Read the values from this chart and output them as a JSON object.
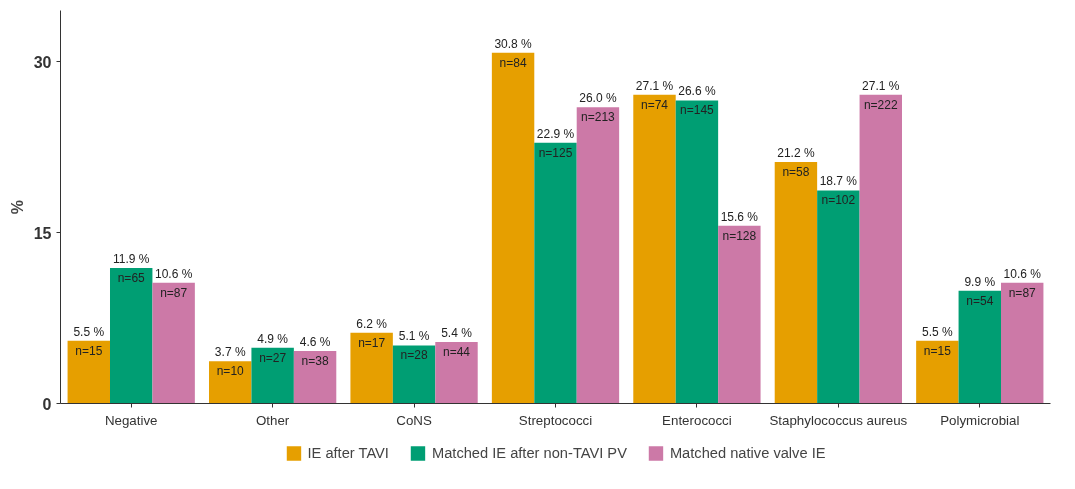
{
  "chart_data": {
    "type": "bar",
    "ylabel": "%",
    "categories": [
      "Negative",
      "Other",
      "CoNS",
      "Streptococci",
      "Enterococci",
      "Staphylococcus aureus",
      "Polymicrobial"
    ],
    "series": [
      {
        "name": "IE after TAVI",
        "color": "#e69f00",
        "values": [
          5.5,
          3.7,
          6.2,
          30.8,
          27.1,
          21.2,
          5.5
        ],
        "value_labels": [
          "5.5 %",
          "3.7 %",
          "6.2 %",
          "30.8 %",
          "27.1 %",
          "21.2 %",
          "5.5 %"
        ]
      },
      {
        "name": "Matched IE after non-TAVI PV",
        "color": "#009e73",
        "values": [
          11.9,
          4.9,
          5.1,
          22.9,
          26.6,
          18.7,
          9.9
        ],
        "value_labels": [
          "11.9 %",
          "4.9 %",
          "5.1 %",
          "22.9 %",
          "26.6 %",
          "18.7 %",
          "9.9 %"
        ]
      },
      {
        "name": "Matched native valve IE",
        "color": "#cc79a7",
        "values": [
          10.6,
          4.6,
          5.4,
          26.0,
          15.6,
          27.1,
          10.6
        ],
        "value_labels": [
          "10.6 %",
          "4.6 %",
          "5.4 %",
          "26.0 %",
          "15.6 %",
          "27.1 %",
          "10.6 %"
        ]
      }
    ],
    "annotations": [
      "n=15",
      "n=65",
      "n=87",
      "n=10",
      "n=27",
      "n=38",
      "n=17",
      "n=28",
      "n=44",
      "n=84",
      "n=125",
      "n=213",
      "n=74",
      "n=145",
      "n=128",
      "n=58",
      "n=102",
      "n=222",
      "n=15",
      "n=54",
      "n=87"
    ],
    "ylim": [
      0,
      34.5
    ],
    "yticks": [
      0,
      15,
      30
    ],
    "grid": false,
    "legend": "bottom"
  }
}
